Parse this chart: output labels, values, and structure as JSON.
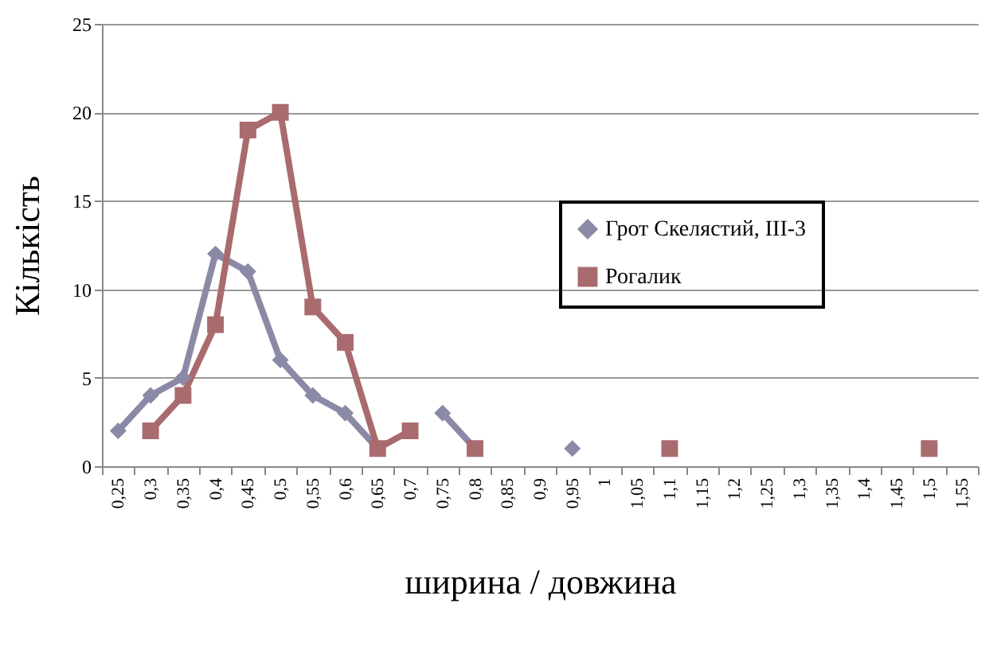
{
  "chart_data": {
    "type": "line",
    "xlabel": "ширина / довжина",
    "ylabel": "Кількість",
    "categories": [
      "0,25",
      "0,3",
      "0,35",
      "0,4",
      "0,45",
      "0,5",
      "0,55",
      "0,6",
      "0,65",
      "0,7",
      "0,75",
      "0,8",
      "0,85",
      "0,9",
      "0,95",
      "1",
      "1,05",
      "1,1",
      "1,15",
      "1,2",
      "1,25",
      "1,3",
      "1,35",
      "1,4",
      "1,45",
      "1,5",
      "1,55"
    ],
    "series": [
      {
        "name": "Грот Скелястий, ІІІ-3",
        "color": "#8b8aa6",
        "marker": "diamond",
        "values": [
          2,
          4,
          5,
          12,
          11,
          6,
          4,
          3,
          1,
          null,
          3,
          1,
          null,
          null,
          1,
          null,
          null,
          null,
          null,
          null,
          null,
          null,
          null,
          null,
          null,
          null,
          null
        ]
      },
      {
        "name": "Рогалик",
        "color": "#a96b6e",
        "marker": "square",
        "values": [
          null,
          2,
          4,
          8,
          19,
          20,
          9,
          7,
          1,
          2,
          null,
          1,
          null,
          null,
          null,
          null,
          null,
          1,
          null,
          null,
          null,
          null,
          null,
          null,
          null,
          1,
          null
        ]
      }
    ],
    "ylim": [
      0,
      25
    ],
    "yticks": [
      0,
      5,
      10,
      15,
      20,
      25
    ],
    "grid": "y",
    "legend": "right"
  }
}
